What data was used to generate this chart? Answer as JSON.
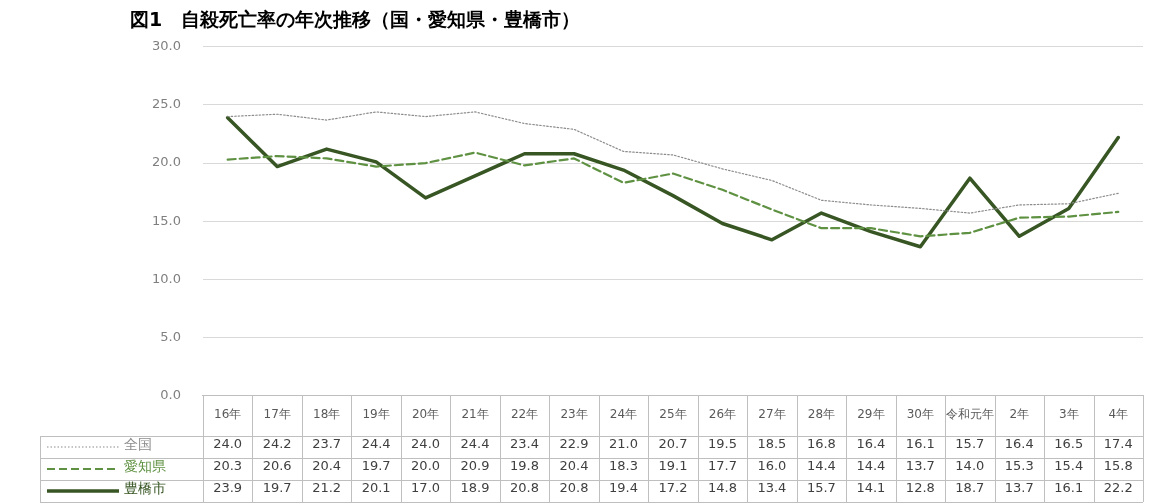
{
  "chart_data": {
    "type": "line",
    "title": "図1　自殺死亡率の年次推移（国・愛知県・豊橋市）",
    "categories": [
      "16年",
      "17年",
      "18年",
      "19年",
      "20年",
      "21年",
      "22年",
      "23年",
      "24年",
      "25年",
      "26年",
      "27年",
      "28年",
      "29年",
      "30年",
      "令和元年",
      "2年",
      "3年",
      "4年"
    ],
    "series": [
      {
        "name": "全国",
        "color": "#8c8c8c",
        "line_style": "dotted",
        "values": [
          24.0,
          24.2,
          23.7,
          24.4,
          24.0,
          24.4,
          23.4,
          22.9,
          21.0,
          20.7,
          19.5,
          18.5,
          16.8,
          16.4,
          16.1,
          15.7,
          16.4,
          16.5,
          17.4
        ],
        "value_labels": [
          "24.0",
          "24.2",
          "23.7",
          "24.4",
          "24.0",
          "24.4",
          "23.4",
          "22.9",
          "21.0",
          "20.7",
          "19.5",
          "18.5",
          "16.8",
          "16.4",
          "16.1",
          "15.7",
          "16.4",
          "16.5",
          "17.4"
        ]
      },
      {
        "name": "愛知県",
        "color": "#5f9142",
        "line_style": "dashed",
        "values": [
          20.3,
          20.6,
          20.4,
          19.7,
          20.0,
          20.9,
          19.8,
          20.4,
          18.3,
          19.1,
          17.7,
          16.0,
          14.4,
          14.4,
          13.7,
          14.0,
          15.3,
          15.4,
          15.8
        ],
        "value_labels": [
          "20.3",
          "20.6",
          "20.4",
          "19.7",
          "20.0",
          "20.9",
          "19.8",
          "20.4",
          "18.3",
          "19.1",
          "17.7",
          "16.0",
          "14.4",
          "14.4",
          "13.7",
          "14.0",
          "15.3",
          "15.4",
          "15.8"
        ]
      },
      {
        "name": "豊橋市",
        "color": "#375623",
        "line_style": "solid",
        "values": [
          23.9,
          19.7,
          21.2,
          20.1,
          17.0,
          18.9,
          20.8,
          20.8,
          19.4,
          17.2,
          14.8,
          13.4,
          15.7,
          14.1,
          12.8,
          18.7,
          13.7,
          16.1,
          22.2
        ],
        "value_labels": [
          "23.9",
          "19.7",
          "21.2",
          "20.1",
          "17.0",
          "18.9",
          "20.8",
          "20.8",
          "19.4",
          "17.2",
          "14.8",
          "13.4",
          "15.7",
          "14.1",
          "12.8",
          "18.7",
          "13.7",
          "16.1",
          "22.2"
        ]
      }
    ],
    "ylim": [
      0,
      30
    ],
    "yticks": [
      {
        "value": 0,
        "label": "0.0"
      },
      {
        "value": 5,
        "label": "5.0"
      },
      {
        "value": 10,
        "label": "10.0"
      },
      {
        "value": 15,
        "label": "15.0"
      },
      {
        "value": 20,
        "label": "20.0"
      },
      {
        "value": 25,
        "label": "25.0"
      },
      {
        "value": 30,
        "label": "30.0"
      }
    ],
    "grid": "y",
    "marker": "none",
    "legend": "bottom"
  }
}
